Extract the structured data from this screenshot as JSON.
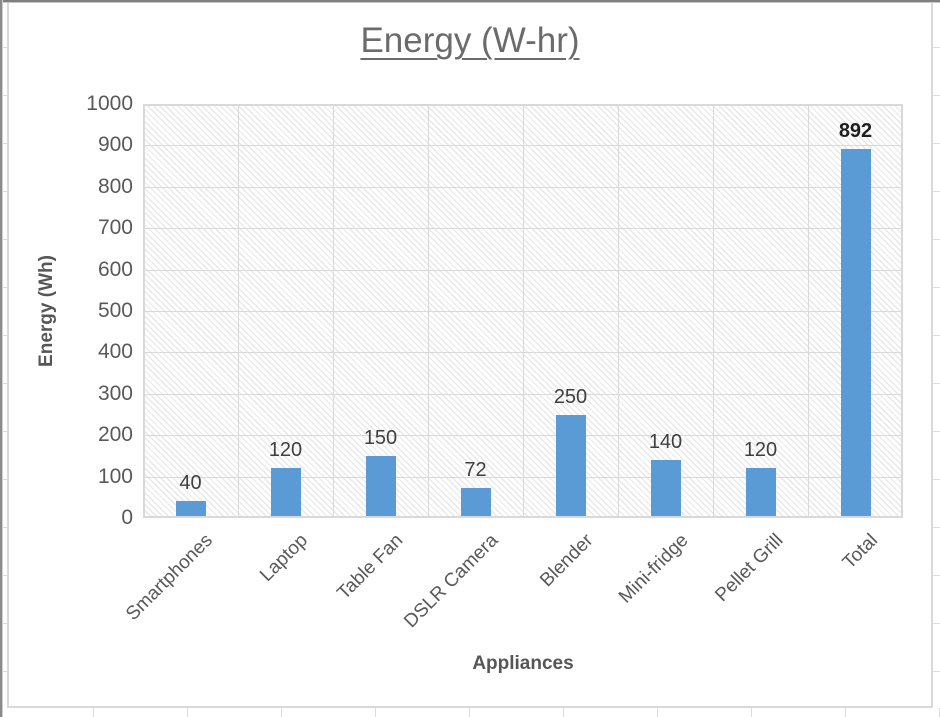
{
  "chart_data": {
    "type": "bar",
    "title": "Energy (W-hr)",
    "title_underlined": true,
    "categories": [
      "Smartphones",
      "Laptop",
      "Table Fan",
      "DSLR Camera",
      "Blender",
      "Mini-fridge",
      "Pellet Grill",
      "Total"
    ],
    "values": [
      40,
      120,
      150,
      72,
      250,
      140,
      120,
      892
    ],
    "value_labels": [
      "40",
      "120",
      "150",
      "72",
      "250",
      "140",
      "120",
      "892"
    ],
    "emphasized_label_index": 7,
    "xlabel": "Appliances",
    "ylabel": "Energy (Wh)",
    "ylim": [
      0,
      1000
    ],
    "ytick_step": 100,
    "ytick_labels": [
      "0",
      "100",
      "200",
      "300",
      "400",
      "500",
      "600",
      "700",
      "800",
      "900",
      "1000"
    ],
    "x_label_rotation_deg": 45,
    "legend": null,
    "grid": true,
    "plot_background": "diagonal-hatch",
    "colors": {
      "bar": "#5B9BD5",
      "gridline": "#d9d9d9",
      "hatch": "#e8e8e8",
      "title_text": "#6b6b6b",
      "axis_text": "#595959",
      "value_label_text": "#3f3f3f",
      "emphasized_label_text": "#1f1f1f"
    }
  }
}
